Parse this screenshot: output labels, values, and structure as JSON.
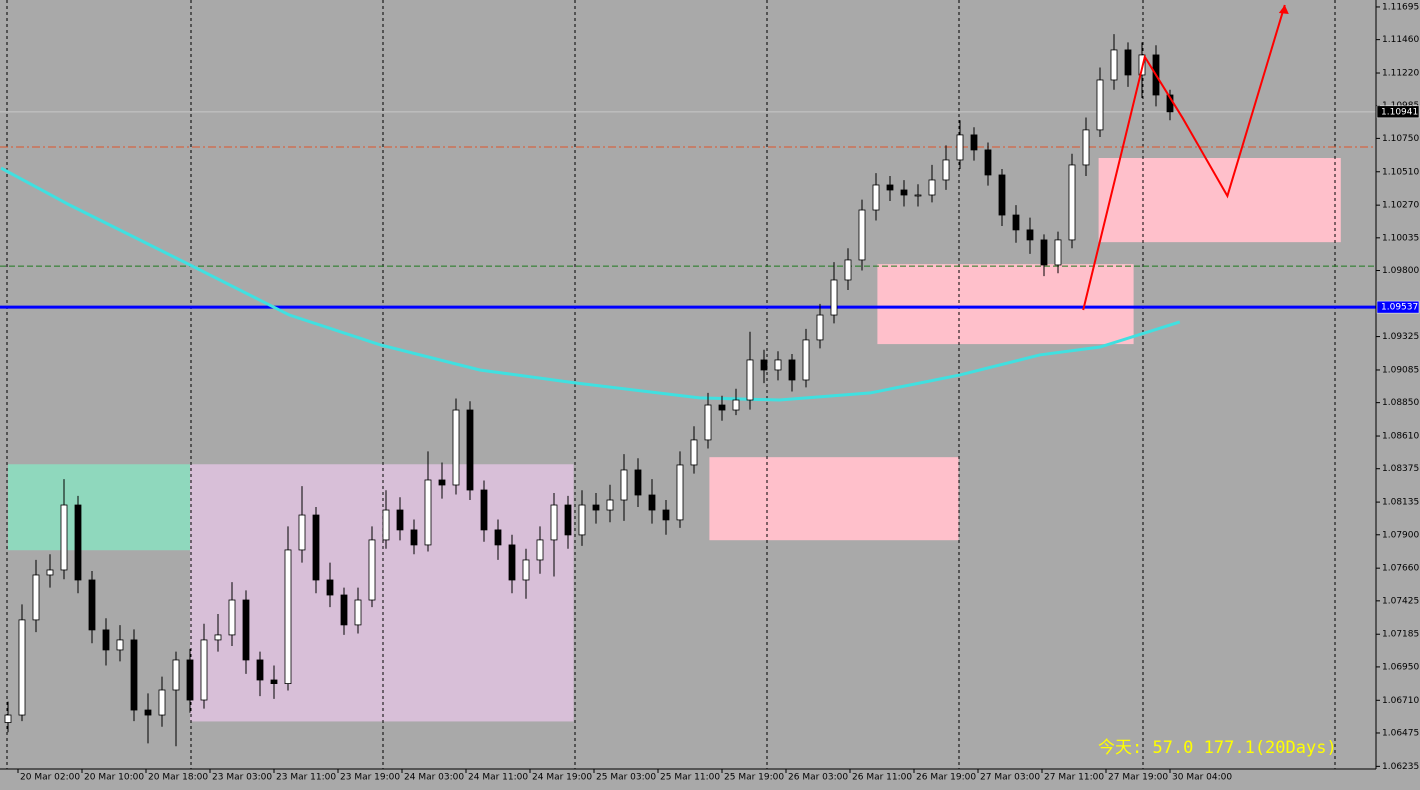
{
  "chart_data": {
    "type": "candlestick",
    "up_color": "#ffffff",
    "down_color": "#000000",
    "open": [
      1.0655,
      1.06604,
      1.07288,
      1.07611,
      1.07647,
      1.08114,
      1.07575,
      1.07216,
      1.07072,
      1.07144,
      1.0664,
      1.06604,
      1.06784,
      1.07,
      1.06712,
      1.07144,
      1.0718,
      1.07431,
      1.07,
      1.06856,
      1.0683,
      1.07791,
      1.08042,
      1.07575,
      1.07467,
      1.07252,
      1.07431,
      1.07863,
      1.08078,
      1.07935,
      1.07827,
      1.08294,
      1.08258,
      1.08797,
      1.08222,
      1.07935,
      1.07827,
      1.07575,
      1.07719,
      1.07863,
      1.08114,
      1.07899,
      1.08114,
      1.08078,
      1.0815,
      1.08366,
      1.08186,
      1.08078,
      1.08007,
      1.08402,
      1.08582,
      1.08833,
      1.08797,
      1.08869,
      1.09157,
      1.09085,
      1.09157,
      1.09013,
      1.09301,
      1.0948,
      1.09732,
      1.09876,
      1.10235,
      1.10415,
      1.10379,
      1.10343,
      1.10343,
      1.10451,
      1.10595,
      1.10775,
      1.10667,
      1.10487,
      1.10199,
      1.10092,
      1.1002,
      1.0984,
      1.1002,
      1.10559,
      1.10811,
      1.1117,
      1.11386,
      1.11206,
      1.1135,
      1.11062
    ],
    "high": [
      1.067,
      1.074,
      1.0772,
      1.0776,
      1.083,
      1.0818,
      1.0764,
      1.073,
      1.0725,
      1.0722,
      1.0676,
      1.0688,
      1.0706,
      1.0708,
      1.0726,
      1.0733,
      1.0756,
      1.075,
      1.0706,
      1.0696,
      1.0796,
      1.0825,
      1.081,
      1.077,
      1.0752,
      1.0752,
      1.0796,
      1.0822,
      1.0817,
      1.0801,
      1.085,
      1.0842,
      1.0888,
      1.0886,
      1.0829,
      1.0801,
      1.079,
      1.078,
      1.0796,
      1.082,
      1.0818,
      1.0822,
      1.082,
      1.0826,
      1.0848,
      1.0845,
      1.083,
      1.0815,
      1.085,
      1.0868,
      1.0892,
      1.089,
      1.0895,
      1.0936,
      1.0923,
      1.0922,
      1.092,
      1.0938,
      1.0956,
      1.0986,
      1.0996,
      1.1031,
      1.105,
      1.1048,
      1.1045,
      1.1042,
      1.1056,
      1.107,
      1.1088,
      1.1083,
      1.1072,
      1.1053,
      1.1027,
      1.1018,
      1.1006,
      1.1008,
      1.1064,
      1.109,
      1.1126,
      1.115,
      1.1144,
      1.1144,
      1.1142,
      1.111
    ],
    "low": [
      1.0648,
      1.0656,
      1.072,
      1.0752,
      1.0758,
      1.0748,
      1.0712,
      1.0696,
      1.0699,
      1.0656,
      1.064,
      1.0652,
      1.0638,
      1.0662,
      1.0665,
      1.0706,
      1.071,
      1.069,
      1.0674,
      1.0672,
      1.0678,
      1.077,
      1.0748,
      1.0738,
      1.0718,
      1.0719,
      1.0738,
      1.078,
      1.0786,
      1.0776,
      1.0778,
      1.0816,
      1.0819,
      1.0815,
      1.0785,
      1.0772,
      1.0748,
      1.0744,
      1.0762,
      1.076,
      1.078,
      1.0782,
      1.0798,
      1.0799,
      1.08,
      1.081,
      1.0798,
      1.079,
      1.0795,
      1.0834,
      1.0852,
      1.0872,
      1.0876,
      1.088,
      1.0899,
      1.0901,
      1.0893,
      1.0896,
      1.0924,
      1.0942,
      1.0966,
      1.098,
      1.1016,
      1.103,
      1.1026,
      1.1026,
      1.1029,
      1.1038,
      1.1053,
      1.1059,
      1.1041,
      1.1012,
      1.1,
      1.0992,
      1.0976,
      1.0978,
      1.0996,
      1.1048,
      1.1076,
      1.111,
      1.1112,
      1.1104,
      1.1098,
      1.1088
    ],
    "close": [
      1.06604,
      1.07288,
      1.07611,
      1.07647,
      1.08114,
      1.07575,
      1.07216,
      1.07072,
      1.07144,
      1.0664,
      1.06604,
      1.06784,
      1.07,
      1.06712,
      1.07144,
      1.0718,
      1.07431,
      1.07,
      1.06856,
      1.0683,
      1.07791,
      1.08042,
      1.07575,
      1.07467,
      1.07252,
      1.07431,
      1.07863,
      1.08078,
      1.07935,
      1.07827,
      1.08294,
      1.08258,
      1.08797,
      1.08222,
      1.07935,
      1.07827,
      1.07575,
      1.07719,
      1.07863,
      1.08114,
      1.07899,
      1.08114,
      1.08078,
      1.0815,
      1.08366,
      1.08186,
      1.08078,
      1.08007,
      1.08402,
      1.08582,
      1.08833,
      1.08797,
      1.08869,
      1.09157,
      1.09085,
      1.09157,
      1.09013,
      1.09301,
      1.0948,
      1.09732,
      1.09876,
      1.10235,
      1.10415,
      1.10379,
      1.10343,
      1.10343,
      1.10451,
      1.10595,
      1.10775,
      1.10667,
      1.10487,
      1.10199,
      1.10092,
      1.1002,
      1.0984,
      1.1002,
      1.10559,
      1.10811,
      1.1117,
      1.11386,
      1.11206,
      1.1135,
      1.11062,
      1.10941
    ],
    "ylim": [
      1.06216,
      1.11745
    ],
    "yticks": [
      1.11695,
      {
        "value": 1.1146,
        "label": "1.11460"
      },
      {
        "value": 1.1122,
        "label": "1.11220"
      },
      1.10985,
      {
        "value": 1.1075,
        "label": "1.10750"
      },
      {
        "value": 1.1051,
        "label": "1.10510"
      },
      {
        "value": 1.1027,
        "label": "1.10270"
      },
      1.10035,
      {
        "value": 1.098,
        "label": "1.09800"
      },
      1.09325,
      1.09085,
      {
        "value": 1.0885,
        "label": "1.08850"
      },
      {
        "value": 1.0861,
        "label": "1.08610"
      },
      1.08375,
      1.08135,
      {
        "value": 1.079,
        "label": "1.07900"
      },
      {
        "value": 1.0766,
        "label": "1.07660"
      },
      1.07425,
      1.07185,
      {
        "value": 1.0695,
        "label": "1.06950"
      },
      {
        "value": 1.0671,
        "label": "1.06710"
      },
      1.06475,
      1.06235
    ],
    "xtick_labels": [
      "20 Mar 02:00",
      "20 Mar 10:00",
      "20 Mar 18:00",
      "23 Mar 03:00",
      "23 Mar 11:00",
      "23 Mar 19:00",
      "24 Mar 03:00",
      "24 Mar 11:00",
      "24 Mar 19:00",
      "25 Mar 03:00",
      "25 Mar 11:00",
      "25 Mar 19:00",
      "26 Mar 03:00",
      "26 Mar 11:00",
      "26 Mar 19:00",
      "27 Mar 03:00",
      "27 Mar 11:00",
      "27 Mar 19:00",
      "30 Mar 04:00"
    ],
    "zones": [
      {
        "start": 0,
        "end": 13,
        "top": 1.08407,
        "bottom": 1.07789,
        "color": "#8fd8bd"
      },
      {
        "start": 13,
        "end": 40.4,
        "top": 1.08407,
        "bottom": 1.06558,
        "color": "#d8bfd8"
      },
      {
        "start": 50.1,
        "end": 67.9,
        "top": 1.08458,
        "bottom": 1.07861,
        "color": "#ffc0cb"
      },
      {
        "start": 62.1,
        "end": 80.4,
        "top": 1.09846,
        "bottom": 1.09271,
        "color": "#ffc0cb"
      },
      {
        "start": 77.9,
        "end": 95.2,
        "top": 1.10609,
        "bottom": 1.10004,
        "color": "#ffc0cb"
      }
    ],
    "hlines": [
      {
        "value": 1.10941,
        "color": "#c8c8c8",
        "style": "solid",
        "width": 1,
        "tag_color": "#000000"
      },
      {
        "value": 1.10688,
        "color": "#e0552a",
        "style": "dashdot",
        "width": 1
      },
      {
        "value": 1.09832,
        "color": "#1f7a1f",
        "style": "dash",
        "width": 1
      },
      {
        "value": 1.09537,
        "color": "#0000ff",
        "style": "solid",
        "width": 3,
        "tag_color": "#0000ff"
      }
    ],
    "ma": {
      "color": "#40e0e0",
      "x": [
        -0.5,
        4.4,
        13,
        20.1,
        26.6,
        33.7,
        40.5,
        49.4,
        55.1,
        61.6,
        68,
        73.7,
        78,
        83.7
      ],
      "values": [
        1.10537,
        1.10271,
        1.0984,
        1.0948,
        1.09265,
        1.09085,
        1.08992,
        1.08884,
        1.08869,
        1.0892,
        1.09049,
        1.09193,
        1.0925,
        1.0943
      ]
    },
    "arrow": {
      "color": "#ff0000",
      "x": [
        76.8,
        81.2,
        83.9,
        87.1,
        91.2
      ],
      "values": [
        1.09516,
        1.11336,
        1.10897,
        1.10336,
        1.11709
      ]
    },
    "info_text": "今天: 57.0  177.1(20Days)"
  }
}
